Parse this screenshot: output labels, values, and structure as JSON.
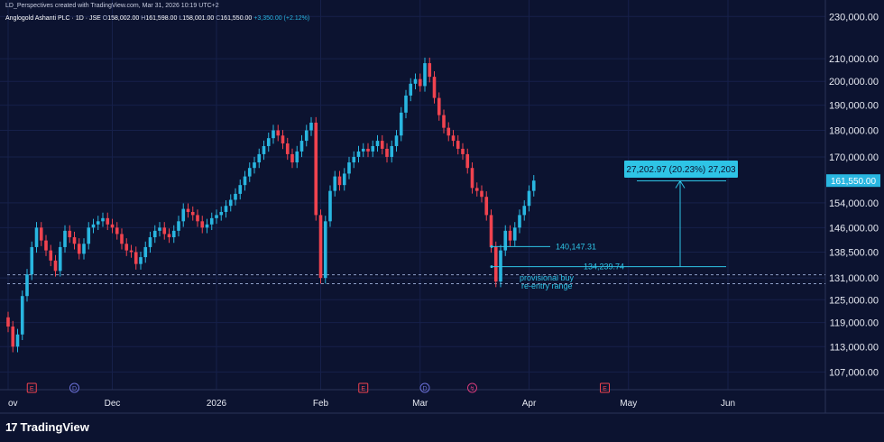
{
  "header": {
    "credit": "LD_Perspectives created with TradingView.com, Mar 31, 2026 10:19 UTC+2",
    "symbol": "Anglogold Ashanti PLC · 1D · JSE",
    "o_label": "O",
    "o_value": "158,002.00",
    "h_label": "H",
    "h_value": "161,598.00",
    "l_label": "L",
    "l_value": "158,001.00",
    "c_label": "C",
    "c_value": "161,550.00",
    "change": "+3,350.00 (+2.12%)"
  },
  "branding": {
    "logo_text": "17",
    "name": "TradingView"
  },
  "colors": {
    "background": "#0c1330",
    "up": "#29b6e0",
    "down": "#f0434f",
    "accent": "#2ec4e6",
    "grid": "#16204a"
  },
  "chart_data": {
    "type": "candlestick",
    "y_scale": "log",
    "ylim": [
      103000,
      236000
    ],
    "y_ticks": [
      "230,000.00",
      "210,000.00",
      "200,000.00",
      "190,000.00",
      "180,000.00",
      "170,000.00",
      "154,000.00",
      "146,000.00",
      "138,500.00",
      "131,000.00",
      "125,000.00",
      "119,000.00",
      "113,000.00",
      "107,000.00"
    ],
    "y_tick_values": [
      230000,
      210000,
      200000,
      190000,
      180000,
      170000,
      154000,
      146000,
      138500,
      131000,
      125000,
      119000,
      113000,
      107000
    ],
    "x_ticks": [
      "ov",
      "Dec",
      "2026",
      "Feb",
      "Mar",
      "Apr",
      "May",
      "Jun"
    ],
    "x_tick_index": [
      0,
      22,
      44,
      66,
      87,
      110,
      131,
      152
    ],
    "last_price_label": "161,550.00",
    "last_price": 161550,
    "bars_series": [
      {
        "name": "up",
        "color": "#29b6e0"
      },
      {
        "name": "down",
        "color": "#f0434f"
      }
    ],
    "closes": [
      118000,
      113000,
      116000,
      126000,
      132000,
      140000,
      146000,
      142000,
      139000,
      136000,
      133000,
      140000,
      145000,
      143000,
      141000,
      138000,
      141000,
      146000,
      147000,
      148000,
      149000,
      147000,
      146000,
      144000,
      141000,
      139000,
      138500,
      135000,
      137000,
      140000,
      143000,
      145000,
      146000,
      144000,
      143000,
      145000,
      148000,
      152000,
      151000,
      150000,
      148000,
      146000,
      147000,
      149000,
      150000,
      151000,
      153000,
      155000,
      157000,
      160000,
      163000,
      166000,
      168000,
      171000,
      174000,
      177000,
      180000,
      178000,
      175000,
      171000,
      168000,
      172000,
      176000,
      180000,
      183000,
      150000,
      131000,
      148000,
      158000,
      163000,
      160000,
      164000,
      168000,
      170000,
      172000,
      173000,
      172000,
      174000,
      176000,
      173000,
      170000,
      174000,
      178000,
      187000,
      194000,
      199000,
      201000,
      198000,
      208000,
      202000,
      193000,
      186000,
      181000,
      178000,
      176000,
      173000,
      171000,
      166000,
      159000,
      158000,
      156000,
      150000,
      140000,
      130000,
      139000,
      145000,
      142000,
      146000,
      150000,
      153000,
      158000,
      161550
    ],
    "annotations": {
      "measure_text": "27,202.97 (20.23%) 27,203",
      "level_1_text": "140,147.31",
      "level_1": 140147.31,
      "level_2_text": "134,239.74",
      "level_2": 134239.74,
      "target": 161442.71,
      "zone_label_1": "provisional buy",
      "zone_label_2": "re-entry range",
      "zone_top": 131900,
      "zone_bottom": 129400
    },
    "event_markers": [
      {
        "label": "E",
        "type": "earnings",
        "index": 5
      },
      {
        "label": "D",
        "type": "dividend",
        "index": 14
      },
      {
        "label": "E",
        "type": "earnings",
        "index": 75
      },
      {
        "label": "D",
        "type": "dividend",
        "index": 88
      },
      {
        "label": "↯",
        "type": "split",
        "index": 98
      },
      {
        "label": "E",
        "type": "earnings",
        "index": 126
      }
    ]
  }
}
